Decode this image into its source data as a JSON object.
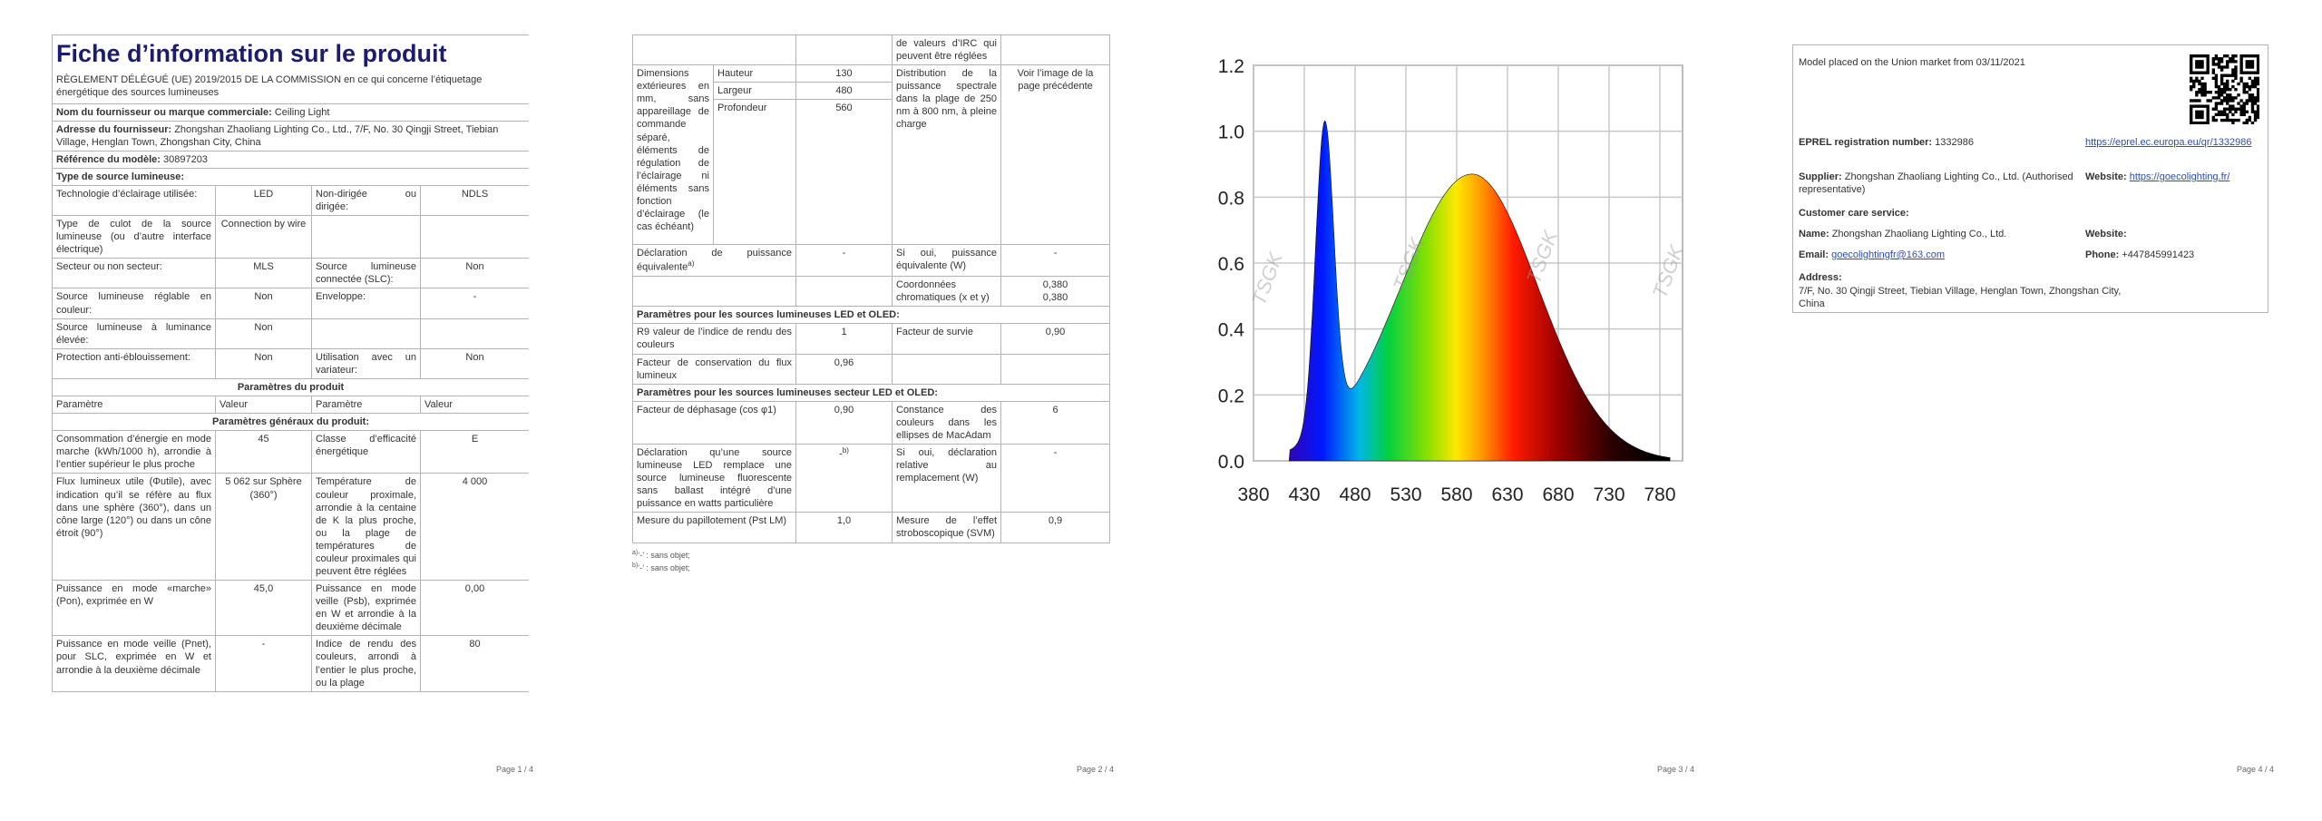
{
  "page1": {
    "title": "Fiche d’information sur le produit",
    "regulation": "RÈGLEMENT DÉLÉGUÉ (UE) 2019/2015 DE LA COMMISSION en ce qui concerne l’étiquetage énergétique des sources lumineuses",
    "supplier": {
      "label": "Nom du fournisseur ou marque commerciale:",
      "value": "Ceiling Light"
    },
    "address": {
      "label": "Adresse du fournisseur:",
      "value": "Zhongshan Zhaoliang Lighting Co., Ltd., 7/F, No. 30 Qingji Street, Tiebian Village, Henglan Town, Zhongshan City, China"
    },
    "model": {
      "label": "Référence du modèle:",
      "value": "30897203"
    },
    "source_type": "Type de source lumineuse:",
    "rows": [
      [
        "Technologie d’éclairage utilisée:",
        "LED",
        "Non-dirigée ou dirigée:",
        "NDLS"
      ],
      [
        "Type de culot de la source lumineuse (ou d’autre interface électrique)",
        "Connection by wire",
        null,
        null
      ],
      [
        "Secteur ou non secteur:",
        "MLS",
        "Source lumineuse connectée (SLC):",
        "Non"
      ],
      [
        "Source lumineuse réglable en couleur:",
        "Non",
        "Enveloppe:",
        "-"
      ],
      [
        "Source lumineuse à luminance élevée:",
        "Non",
        null,
        null
      ],
      [
        "Protection anti-éblouissement:",
        "Non",
        "Utilisation avec un variateur:",
        "Non"
      ]
    ],
    "params_heading": "Paramètres du produit",
    "header": [
      "Paramètre",
      "Valeur",
      "Paramètre",
      "Valeur"
    ],
    "general_heading": "Paramètres généraux du produit:",
    "general_rows": [
      [
        "Consommation d’énergie en mode marche (kWh/1000 h), arrondie à l’entier supérieur le plus proche",
        "45",
        "Classe d’efficacité énergétique",
        "E"
      ],
      [
        "Flux lumineux utile (Φutile), avec indication qu’il se réfère au flux dans une sphère (360°), dans un cône large (120°) ou dans un cône étroit (90°)",
        "5 062 sur Sphère (360°)",
        "Température de couleur proximale, arrondie à la centaine de K la plus proche, ou la plage de températures de couleur proximales qui peuvent être réglées",
        "4 000"
      ],
      [
        "Puissance en mode «marche» (Pon), exprimée en W",
        "45,0",
        "Puissance en mode veille (Psb), exprimée en W et arrondie à la deuxième décimale",
        "0,00"
      ],
      [
        "Puissance en mode veille (Pnet), pour SLC, exprimée en W et arrondie à la deuxième décimale",
        "-",
        "Indice de rendu des couleurs, arrondi à l’entier le plus proche, ou la plage",
        "80"
      ]
    ],
    "page_number": "Page 1 / 4"
  },
  "page2": {
    "continuation": [
      null,
      null,
      "de valeurs d’IRC qui peuvent être réglées",
      null
    ],
    "dimensions": {
      "label": "Dimensions extérieures en mm, sans appareillage de commande séparé, éléments de régulation de l’éclairage ni éléments sans fonction d’éclairage (le cas échéant)",
      "items": [
        {
          "name": "Hauteur",
          "value": "130"
        },
        {
          "name": "Largeur",
          "value": "480"
        },
        {
          "name": "Profondeur",
          "value": "560"
        }
      ],
      "param": "Distribution de la puissance spectrale dans la plage de 250 nm à 800 nm, à pleine charge",
      "value": "Voir l’image de la page précédente"
    },
    "rows": [
      [
        {
          "text": "Déclaration de puissance équivalente",
          "sup": "a)"
        },
        "-",
        "Si oui, puissance équivalente (W)",
        "-"
      ],
      [
        null,
        null,
        "Coordonnées chromatiques (x et y)",
        [
          "0,380",
          "0,380"
        ]
      ]
    ],
    "led_heading": "Paramètres pour les sources lumineuses LED et OLED:",
    "led_rows": [
      [
        "R9 valeur de l’indice de rendu des couleurs",
        "1",
        "Facteur de survie",
        "0,90"
      ],
      [
        "Facteur de conservation du flux lumineux",
        "0,96",
        null,
        null
      ]
    ],
    "mains_heading": "Paramètres pour les sources lumineuses secteur LED et OLED:",
    "mains_rows": [
      [
        "Facteur de déphasage (cos φ1)",
        "0,90",
        "Constance des couleurs dans les ellipses de MacAdam",
        "6"
      ],
      [
        "Déclaration qu’une source lumineuse LED remplace une source lumineuse fluorescente sans ballast intégré d’une puissance en watts particulière",
        {
          "text": "-",
          "sup": "b)"
        },
        "Si oui, déclaration relative au remplacement (W)",
        "-"
      ],
      [
        "Mesure du papillotement (Pst LM)",
        "1,0",
        "Mesure de l’effet stroboscopique (SVM)",
        "0,9"
      ]
    ],
    "notes": [
      {
        "ref": "a)",
        "text": "‘-’ : sans objet;"
      },
      {
        "ref": "b)",
        "text": "‘-’ : sans objet;"
      }
    ],
    "page_number": "Page 2 / 4"
  },
  "page3": {
    "xticks": [
      380,
      430,
      480,
      530,
      580,
      630,
      680,
      730,
      780
    ],
    "yticks": [
      "0.0",
      "0.2",
      "0.4",
      "0.6",
      "0.8",
      "1.0",
      "1.2"
    ],
    "watermark": "TSGK",
    "page_number": "Page 3 / 4"
  },
  "page4": {
    "market": "Model placed on the Union market from 03/11/2021",
    "eprel": {
      "label": "EPREL registration number:",
      "value": "1332986",
      "link": "https://eprel.ec.europa.eu/qr/1332986"
    },
    "supplier": {
      "label": "Supplier:",
      "value": "Zhongshan Zhaoliang Lighting Co., Ltd. (Authorised representative)"
    },
    "website": {
      "label": "Website:",
      "value": "https://goecolighting.fr/"
    },
    "care": "Customer care service:",
    "name": {
      "label": "Name:",
      "value": "Zhongshan Zhaoliang Lighting Co., Ltd."
    },
    "care_website": {
      "label": "Website:"
    },
    "email": {
      "label": "Email:",
      "value": "goecolightingfr@163.com"
    },
    "phone": {
      "label": "Phone:",
      "value": "+447845991423"
    },
    "address": {
      "label": "Address:",
      "value": "7/F, No. 30 Qingji Street, Tiebian Village, Henglan Town, Zhongshan City, China"
    },
    "page_number": "Page 4 / 4"
  }
}
